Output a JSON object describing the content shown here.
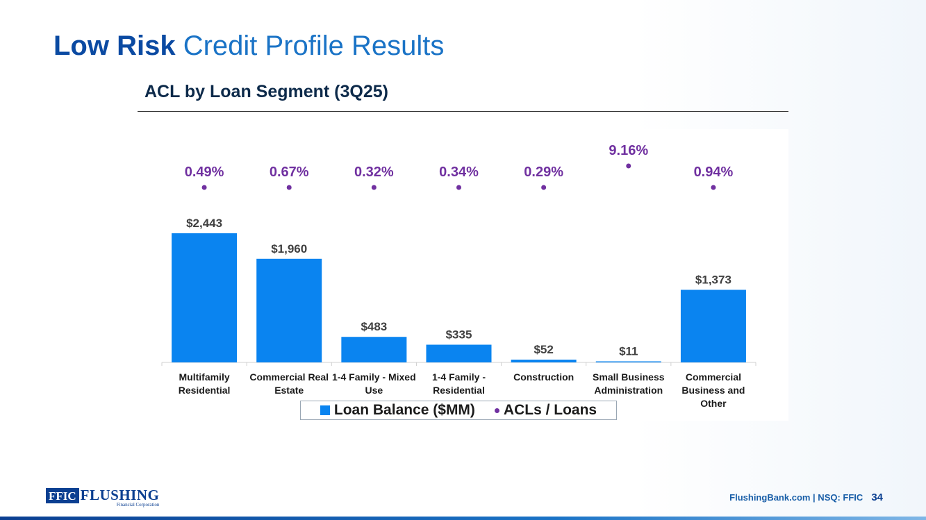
{
  "slide": {
    "title_bold": "Low Risk",
    "title_rest": " Credit Profile Results",
    "subtitle": "ACL by Loan Segment (3Q25)"
  },
  "chart_data": {
    "type": "bar",
    "categories": [
      [
        "Multifamily",
        "Residential"
      ],
      [
        "Commercial Real",
        "Estate"
      ],
      [
        "1-4 Family - Mixed",
        "Use"
      ],
      [
        "1-4 Family -",
        "Residential"
      ],
      [
        "Construction"
      ],
      [
        "Small Business",
        "Administration"
      ],
      [
        "Commercial",
        "Business and",
        "Other"
      ]
    ],
    "series": [
      {
        "name": "Loan Balance ($MM)",
        "type": "bar",
        "values": [
          2443,
          1960,
          483,
          335,
          52,
          11,
          1373
        ],
        "labels": [
          "$2,443",
          "$1,960",
          "$483",
          "$335",
          "$52",
          "$11",
          "$1,373"
        ]
      },
      {
        "name": "ACLs / Loans",
        "type": "scatter",
        "values": [
          0.49,
          0.67,
          0.32,
          0.34,
          0.29,
          9.16,
          0.94
        ],
        "labels": [
          "0.49%",
          "0.67%",
          "0.32%",
          "0.34%",
          "0.29%",
          "9.16%",
          "0.94%"
        ]
      }
    ],
    "legend_position": "bottom",
    "grid": false,
    "colors": {
      "bar": "#0a84f0",
      "dot": "#7030a0",
      "bar_label": "#404040",
      "dot_label": "#7030a0"
    }
  },
  "footer": {
    "logo_box": "FFIC",
    "logo_name": "FLUSHING",
    "logo_sub": "Financial Corporation",
    "site": "FlushingBank.com  |  NSQ: FFIC",
    "page": "34"
  }
}
